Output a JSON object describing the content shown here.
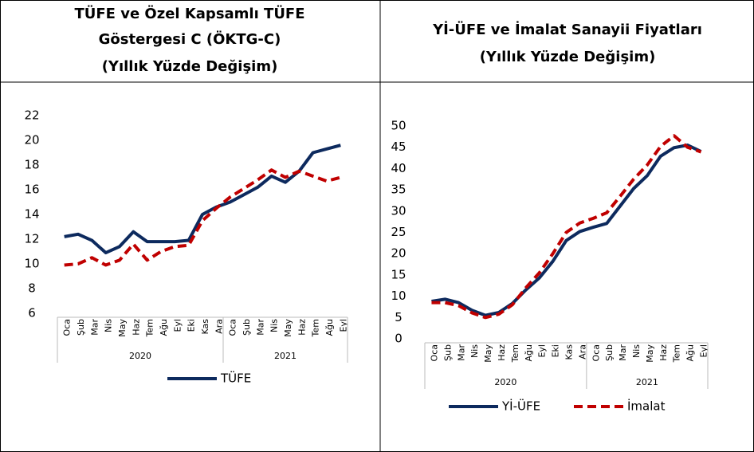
{
  "chart_data": [
    {
      "type": "line",
      "title": [
        "TÜFE ve Özel Kapsamlı TÜFE",
        "Göstergesi C (ÖKTG-C)",
        "(Yıllık Yüzde Değişim)"
      ],
      "groups": [
        {
          "label": "2020",
          "categories": [
            "Oca",
            "Şub",
            "Mar",
            "Nis",
            "May",
            "Haz",
            "Tem",
            "Ağu",
            "Eyl",
            "Eki",
            "Kas",
            "Ara"
          ]
        },
        {
          "label": "2021",
          "categories": [
            "Oca",
            "Şub",
            "Mar",
            "Nis",
            "May",
            "Haz",
            "Tem",
            "Ağu",
            "Eyl"
          ]
        }
      ],
      "series": [
        {
          "name": "TÜFE",
          "color": "#0d2a5e",
          "values": [
            12.2,
            12.4,
            11.9,
            10.9,
            11.4,
            12.6,
            11.8,
            11.8,
            11.8,
            11.9,
            14.0,
            14.6,
            15.0,
            15.6,
            16.2,
            17.1,
            16.6,
            17.5,
            19.0,
            19.3,
            19.6
          ]
        },
        {
          "color": "#c00000",
          "dashed": true,
          "values": [
            9.9,
            10.0,
            10.5,
            9.9,
            10.3,
            11.6,
            10.3,
            11.0,
            11.4,
            11.5,
            13.5,
            14.5,
            15.4,
            16.1,
            16.8,
            17.6,
            17.0,
            17.5,
            17.1,
            16.7,
            17.0
          ]
        }
      ],
      "ylim": [
        6,
        22
      ],
      "yticks": [
        6,
        8,
        10,
        12,
        14,
        16,
        18,
        20,
        22
      ]
    },
    {
      "type": "line",
      "title": [
        "Yİ-ÜFE ve İmalat Sanayii Fiyatları",
        "(Yıllık Yüzde Değişim)"
      ],
      "groups": [
        {
          "label": "2020",
          "categories": [
            "Oca",
            "Şub",
            "Mar",
            "Nis",
            "May",
            "Haz",
            "Tem",
            "Ağu",
            "Eyl",
            "Eki",
            "Kas",
            "Ara"
          ]
        },
        {
          "label": "2021",
          "categories": [
            "Oca",
            "Şub",
            "Mar",
            "Nis",
            "May",
            "Haz",
            "Tem",
            "Ağu",
            "Eyl"
          ]
        }
      ],
      "series": [
        {
          "name": "Yİ-ÜFE",
          "color": "#0d2a5e",
          "values": [
            8.8,
            9.3,
            8.5,
            6.7,
            5.5,
            6.2,
            8.3,
            11.5,
            14.3,
            18.2,
            23.1,
            25.2,
            26.2,
            27.1,
            31.2,
            35.3,
            38.3,
            42.9,
            44.9,
            45.5,
            44.0
          ]
        },
        {
          "name": "İmalat",
          "color": "#c00000",
          "dashed": true,
          "values": [
            8.5,
            8.5,
            7.8,
            6.1,
            5.0,
            5.8,
            8.0,
            12.0,
            15.5,
            20.0,
            25.0,
            27.2,
            28.3,
            29.6,
            33.5,
            37.5,
            40.8,
            45.2,
            47.7,
            45.0,
            43.9
          ]
        }
      ],
      "ylim": [
        0,
        50
      ],
      "yticks": [
        0,
        5,
        10,
        15,
        20,
        25,
        30,
        35,
        40,
        45,
        50
      ]
    }
  ]
}
